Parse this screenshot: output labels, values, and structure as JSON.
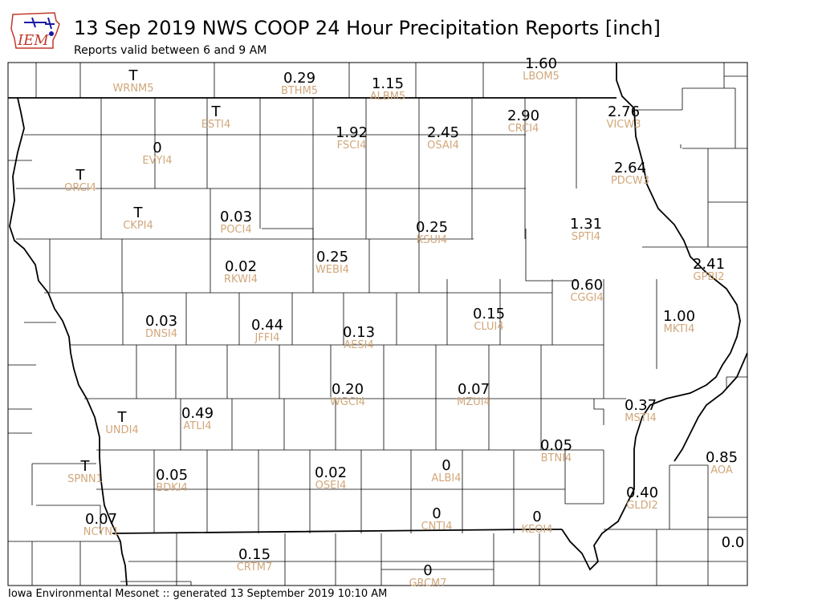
{
  "header": {
    "logo_text": "IEM",
    "title": "13 Sep 2019 NWS COOP 24 Hour Precipitation Reports [inch]",
    "subtitle": "Reports valid between 6 and 9 AM"
  },
  "footer": {
    "text": "Iowa Environmental Mesonet :: generated 13 September 2019 10:10 AM"
  },
  "colors": {
    "value": "#000000",
    "station_id": "#d1a77a",
    "county_line": "#000000",
    "logo_accent": "#1a1aa6",
    "logo_text": "#c0392b"
  },
  "stations": [
    {
      "id": "WRNM5",
      "value": "T"
    },
    {
      "id": "BTHM5",
      "value": "0.29"
    },
    {
      "id": "ALBM5",
      "value": "1.15"
    },
    {
      "id": "LBOM5",
      "value": "1.60"
    },
    {
      "id": "ESTI4",
      "value": "T"
    },
    {
      "id": "FSCI4",
      "value": "1.92"
    },
    {
      "id": "OSAI4",
      "value": "2.45"
    },
    {
      "id": "CRCI4",
      "value": "2.90"
    },
    {
      "id": "VICW3",
      "value": "2.76"
    },
    {
      "id": "EVYI4",
      "value": "0"
    },
    {
      "id": "ORCI4",
      "value": "T"
    },
    {
      "id": "PDCW3",
      "value": "2.64"
    },
    {
      "id": "CKPI4",
      "value": "T"
    },
    {
      "id": "POCI4",
      "value": "0.03"
    },
    {
      "id": "KSUI4",
      "value": "0.25"
    },
    {
      "id": "SPTI4",
      "value": "1.31"
    },
    {
      "id": "RKWI4",
      "value": "0.02"
    },
    {
      "id": "WEBI4",
      "value": "0.25"
    },
    {
      "id": "GPBI2",
      "value": "2.41"
    },
    {
      "id": "CGGI4",
      "value": "0.60"
    },
    {
      "id": "CLUI4",
      "value": "0.15"
    },
    {
      "id": "DNSI4",
      "value": "0.03"
    },
    {
      "id": "JFFI4",
      "value": "0.44"
    },
    {
      "id": "AESI4",
      "value": "0.13"
    },
    {
      "id": "MKTI4",
      "value": "1.00"
    },
    {
      "id": "WGCI4",
      "value": "0.20"
    },
    {
      "id": "MZUI4",
      "value": "0.07"
    },
    {
      "id": "MSTI4",
      "value": "0.37"
    },
    {
      "id": "UNDI4",
      "value": "T"
    },
    {
      "id": "ATLI4",
      "value": "0.49"
    },
    {
      "id": "BTNI4",
      "value": "0.05"
    },
    {
      "id": "AOA",
      "value": "0.85"
    },
    {
      "id": "SPNN1",
      "value": "T"
    },
    {
      "id": "BDKI4",
      "value": "0.05"
    },
    {
      "id": "OSEI4",
      "value": "0.02"
    },
    {
      "id": "ALBI4",
      "value": "0"
    },
    {
      "id": "GLDI2",
      "value": "0.40"
    },
    {
      "id": "NCYN1",
      "value": "0.07"
    },
    {
      "id": "CNTI4",
      "value": "0"
    },
    {
      "id": "KEOI4",
      "value": "0"
    },
    {
      "id": "CRTM7",
      "value": "0.15"
    },
    {
      "id": "GRCM7",
      "value": "0"
    },
    {
      "id": "",
      "value": "0.0"
    }
  ]
}
